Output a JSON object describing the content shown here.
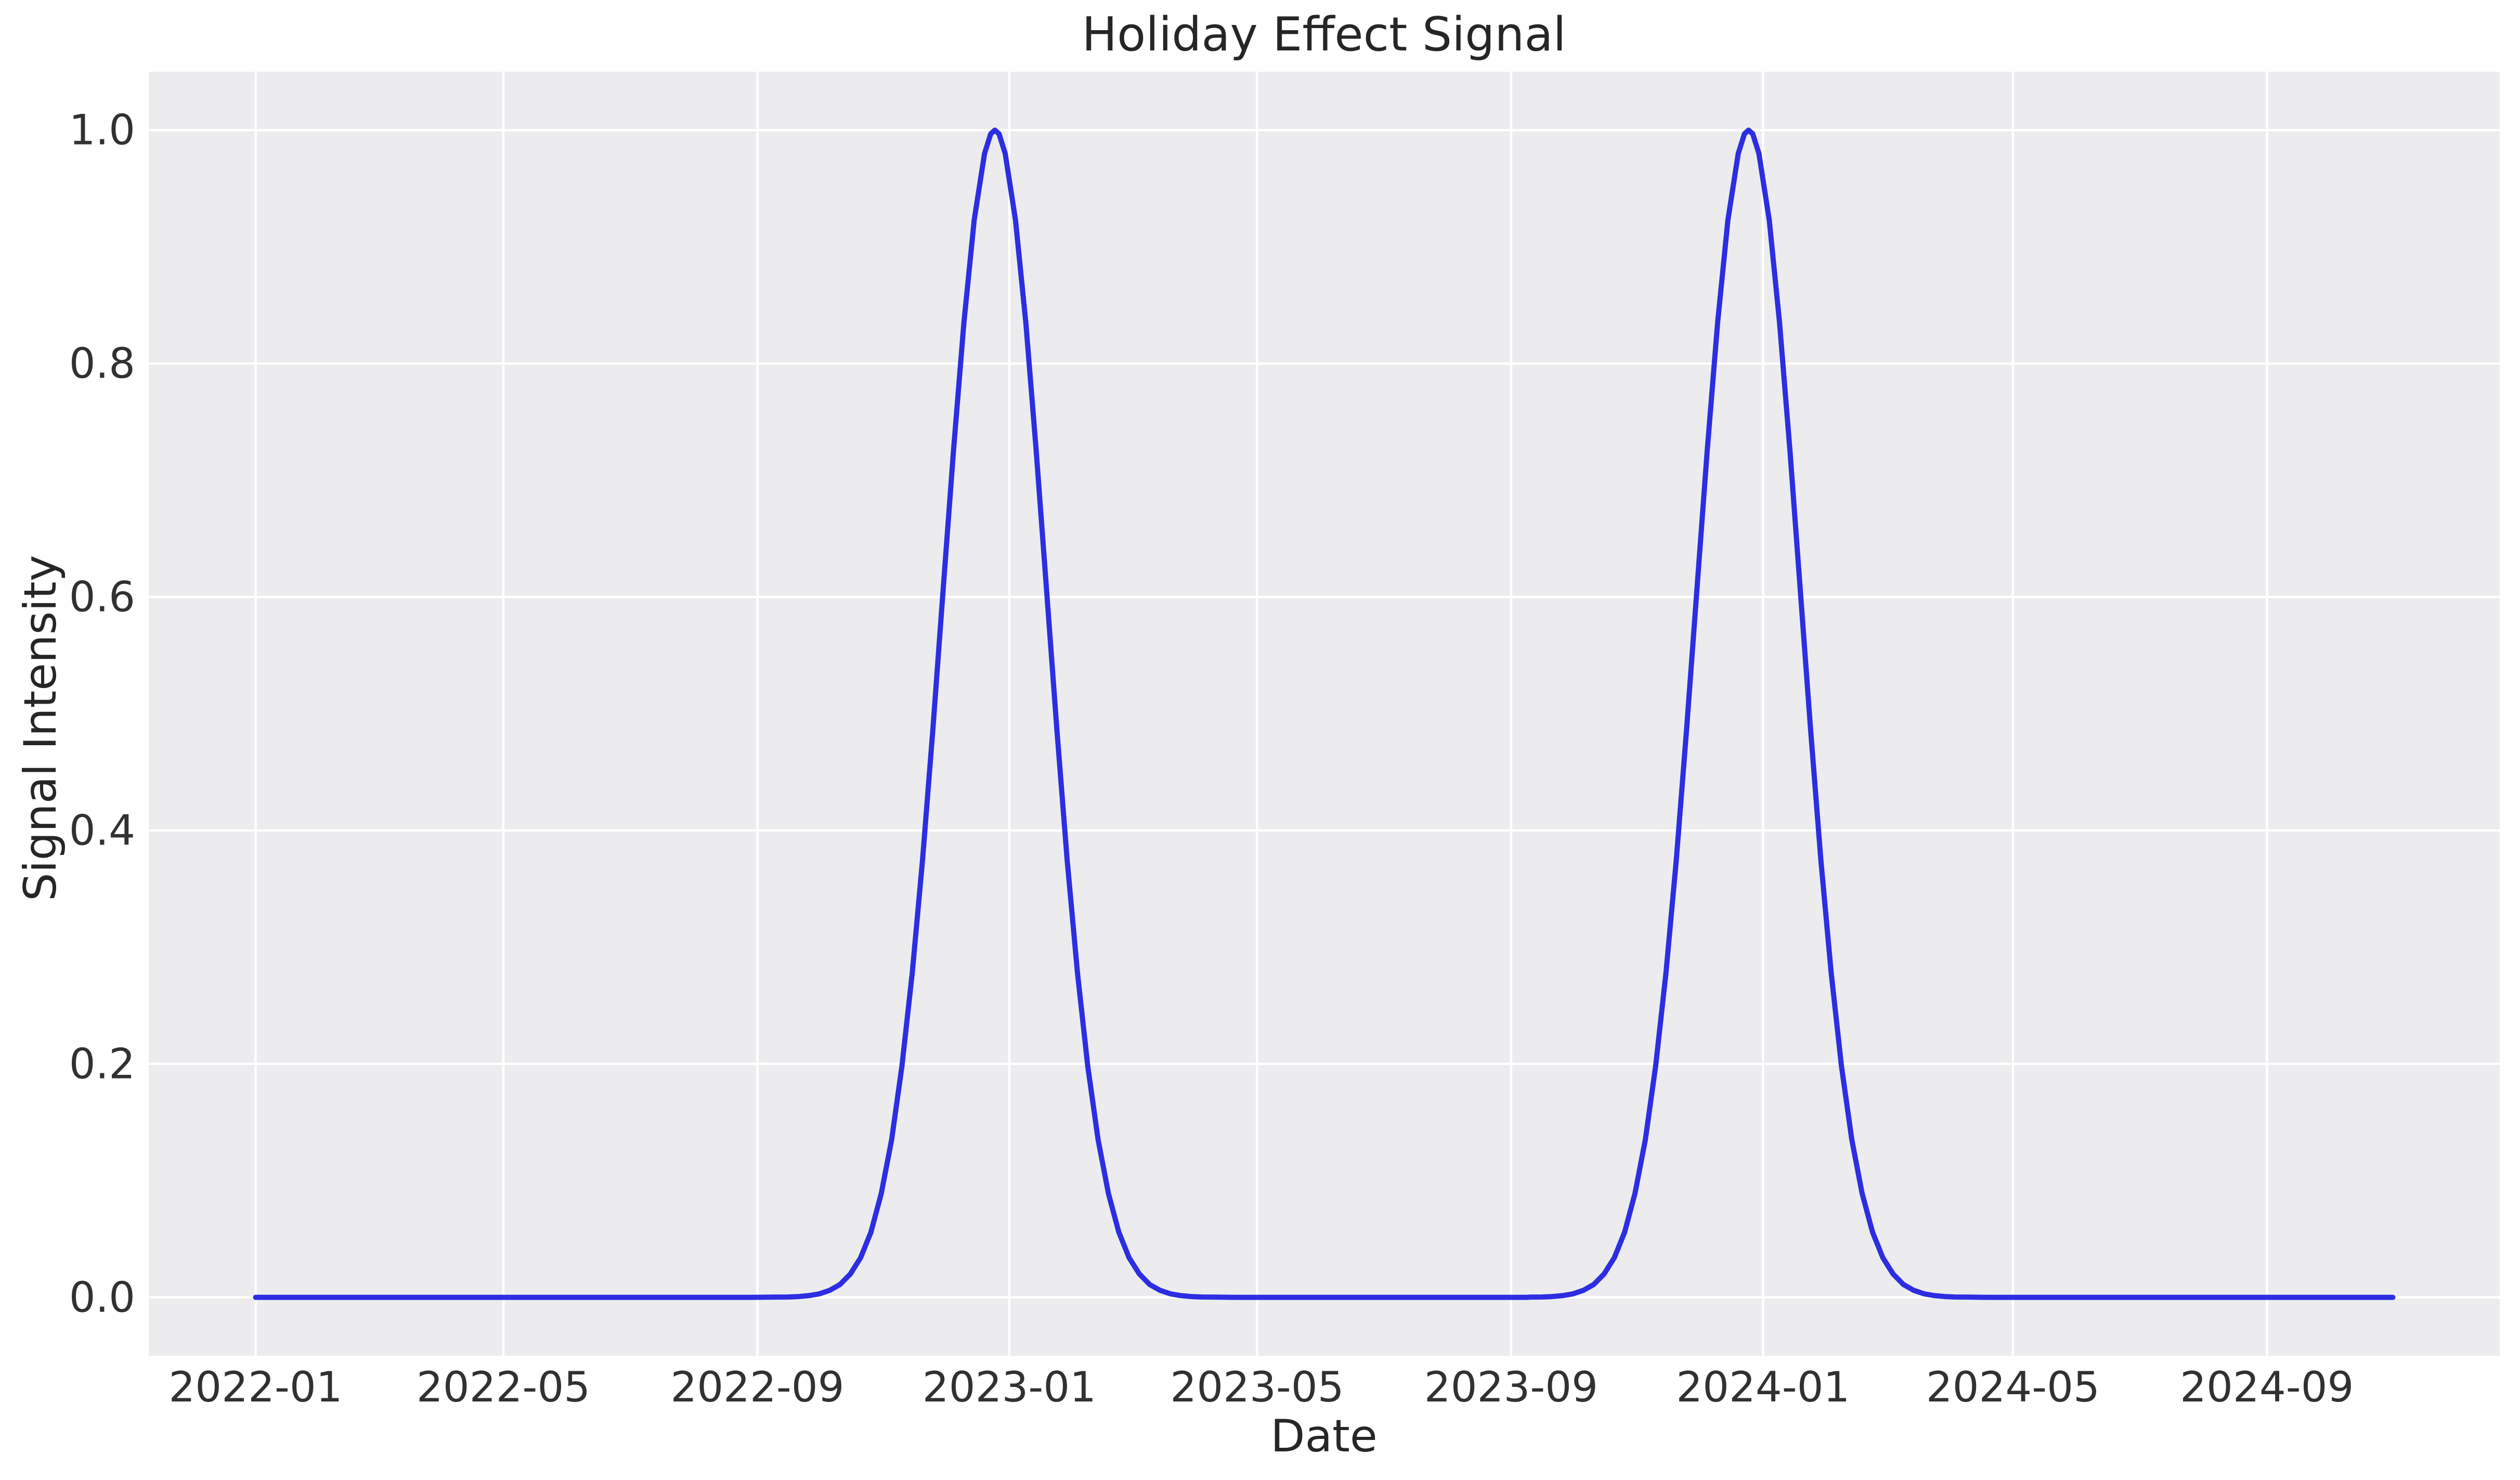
{
  "chart_data": {
    "type": "line",
    "title": "Holiday Effect Signal",
    "xlabel": "Date",
    "ylabel": "Signal Intensity",
    "x_domain": [
      "2022-01-01",
      "2024-11-01"
    ],
    "x_domain_days": [
      0,
      1035
    ],
    "ylim": [
      0.0,
      1.0
    ],
    "grid": true,
    "legend_position": "none",
    "background_color": "#ececee",
    "grid_color": "#ffffff",
    "text_color": "#313131",
    "x_ticks": [
      {
        "label": "2022-01",
        "day": 0
      },
      {
        "label": "2022-05",
        "day": 120
      },
      {
        "label": "2022-09",
        "day": 243
      },
      {
        "label": "2023-01",
        "day": 365
      },
      {
        "label": "2023-05",
        "day": 485
      },
      {
        "label": "2023-09",
        "day": 608
      },
      {
        "label": "2024-01",
        "day": 730
      },
      {
        "label": "2024-05",
        "day": 851
      },
      {
        "label": "2024-09",
        "day": 974
      }
    ],
    "y_ticks": [
      {
        "label": "0.0",
        "value": 0.0
      },
      {
        "label": "0.2",
        "value": 0.2
      },
      {
        "label": "0.4",
        "value": 0.4
      },
      {
        "label": "0.6",
        "value": 0.6
      },
      {
        "label": "0.8",
        "value": 0.8
      },
      {
        "label": "1.0",
        "value": 1.0
      }
    ],
    "series": [
      {
        "name": "Holiday Effect Signal",
        "color": "#2d2de2",
        "peaks": [
          "2022-12-25",
          "2023-12-25"
        ],
        "sigma_days": 25,
        "amplitude": 1.0,
        "points": [
          [
            0,
            0
          ],
          [
            40,
            0
          ],
          [
            80,
            0
          ],
          [
            120,
            0
          ],
          [
            160,
            0
          ],
          [
            200,
            0
          ],
          [
            240,
            0
          ],
          [
            253,
            0.0002
          ],
          [
            258,
            0.0003
          ],
          [
            263,
            0.0007
          ],
          [
            268,
            0.0015
          ],
          [
            273,
            0.003
          ],
          [
            278,
            0.006
          ],
          [
            283,
            0.011
          ],
          [
            288,
            0.02
          ],
          [
            293,
            0.034
          ],
          [
            298,
            0.056
          ],
          [
            303,
            0.089
          ],
          [
            308,
            0.135
          ],
          [
            313,
            0.198
          ],
          [
            318,
            0.278
          ],
          [
            323,
            0.375
          ],
          [
            328,
            0.487
          ],
          [
            333,
            0.607
          ],
          [
            338,
            0.726
          ],
          [
            343,
            0.835
          ],
          [
            348,
            0.923
          ],
          [
            353,
            0.98
          ],
          [
            356,
            0.9968
          ],
          [
            358,
            1.0
          ],
          [
            360,
            0.9968
          ],
          [
            363,
            0.98
          ],
          [
            368,
            0.923
          ],
          [
            373,
            0.835
          ],
          [
            378,
            0.726
          ],
          [
            383,
            0.607
          ],
          [
            388,
            0.487
          ],
          [
            393,
            0.375
          ],
          [
            398,
            0.278
          ],
          [
            403,
            0.198
          ],
          [
            408,
            0.135
          ],
          [
            413,
            0.089
          ],
          [
            418,
            0.056
          ],
          [
            423,
            0.034
          ],
          [
            428,
            0.02
          ],
          [
            433,
            0.011
          ],
          [
            438,
            0.006
          ],
          [
            443,
            0.003
          ],
          [
            448,
            0.0015
          ],
          [
            453,
            0.0007
          ],
          [
            458,
            0.0003
          ],
          [
            463,
            0.0002
          ],
          [
            475,
            0
          ],
          [
            515,
            0
          ],
          [
            555,
            0
          ],
          [
            595,
            0
          ],
          [
            615,
            0
          ],
          [
            618,
            0.0002
          ],
          [
            623,
            0.0003
          ],
          [
            628,
            0.0007
          ],
          [
            633,
            0.0015
          ],
          [
            638,
            0.003
          ],
          [
            643,
            0.006
          ],
          [
            648,
            0.011
          ],
          [
            653,
            0.02
          ],
          [
            658,
            0.034
          ],
          [
            663,
            0.056
          ],
          [
            668,
            0.089
          ],
          [
            673,
            0.135
          ],
          [
            678,
            0.198
          ],
          [
            683,
            0.278
          ],
          [
            688,
            0.375
          ],
          [
            693,
            0.487
          ],
          [
            698,
            0.607
          ],
          [
            703,
            0.726
          ],
          [
            708,
            0.835
          ],
          [
            713,
            0.923
          ],
          [
            718,
            0.98
          ],
          [
            721,
            0.9968
          ],
          [
            723,
            1.0
          ],
          [
            725,
            0.9968
          ],
          [
            728,
            0.98
          ],
          [
            733,
            0.923
          ],
          [
            738,
            0.835
          ],
          [
            743,
            0.726
          ],
          [
            748,
            0.607
          ],
          [
            753,
            0.487
          ],
          [
            758,
            0.375
          ],
          [
            763,
            0.278
          ],
          [
            768,
            0.198
          ],
          [
            773,
            0.135
          ],
          [
            778,
            0.089
          ],
          [
            783,
            0.056
          ],
          [
            788,
            0.034
          ],
          [
            793,
            0.02
          ],
          [
            798,
            0.011
          ],
          [
            803,
            0.006
          ],
          [
            808,
            0.003
          ],
          [
            813,
            0.0015
          ],
          [
            818,
            0.0007
          ],
          [
            823,
            0.0003
          ],
          [
            828,
            0.0002
          ],
          [
            840,
            0
          ],
          [
            880,
            0
          ],
          [
            920,
            0
          ],
          [
            960,
            0
          ],
          [
            1000,
            0
          ],
          [
            1035,
            0
          ]
        ]
      }
    ]
  }
}
